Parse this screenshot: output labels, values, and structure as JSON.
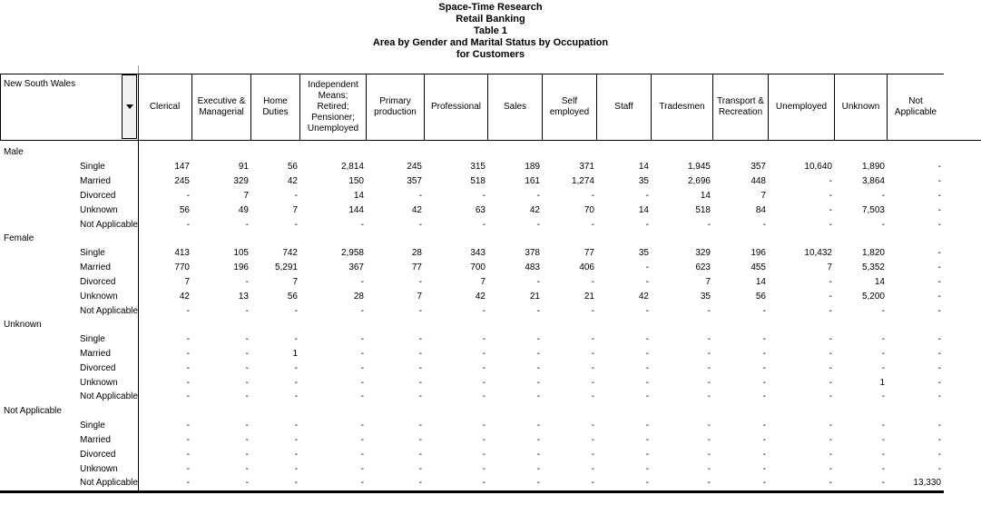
{
  "title": {
    "lines": [
      "Space-Time Research",
      "Retail Banking",
      "Table 1",
      "Area by Gender and Marital Status by Occupation",
      "for Customers"
    ]
  },
  "area_selector": {
    "label": "New South Wales",
    "icon": "chevron-down-icon"
  },
  "table": {
    "columns": [
      "Clerical",
      "Executive & Managerial",
      "Home Duties",
      "Independent Means; Retired; Pensioner; Unemployed",
      "Primary production",
      "Professional",
      "Sales",
      "Self employed",
      "Staff",
      "Tradesmen",
      "Transport & Recreation",
      "Unemployed",
      "Unknown",
      "Not Applicable"
    ],
    "groups": [
      {
        "label": "Male",
        "rows": [
          {
            "label": "Single",
            "values": [
              "147",
              "91",
              "56",
              "2,814",
              "245",
              "315",
              "189",
              "371",
              "14",
              "1,945",
              "357",
              "10,640",
              "1,890",
              "-"
            ]
          },
          {
            "label": "Married",
            "values": [
              "245",
              "329",
              "42",
              "150",
              "357",
              "518",
              "161",
              "1,274",
              "35",
              "2,696",
              "448",
              "-",
              "3,864",
              "-"
            ]
          },
          {
            "label": "Divorced",
            "values": [
              "-",
              "7",
              "-",
              "14",
              "-",
              "-",
              "-",
              "-",
              "-",
              "14",
              "7",
              "-",
              "-",
              "-"
            ]
          },
          {
            "label": "Unknown",
            "values": [
              "56",
              "49",
              "7",
              "144",
              "42",
              "63",
              "42",
              "70",
              "14",
              "518",
              "84",
              "-",
              "7,503",
              "-"
            ]
          },
          {
            "label": "Not Applicable",
            "values": [
              "-",
              "-",
              "-",
              "-",
              "-",
              "-",
              "-",
              "-",
              "-",
              "-",
              "-",
              "-",
              "-",
              "-"
            ]
          }
        ]
      },
      {
        "label": "Female",
        "rows": [
          {
            "label": "Single",
            "values": [
              "413",
              "105",
              "742",
              "2,958",
              "28",
              "343",
              "378",
              "77",
              "35",
              "329",
              "196",
              "10,432",
              "1,820",
              "-"
            ]
          },
          {
            "label": "Married",
            "values": [
              "770",
              "196",
              "5,291",
              "367",
              "77",
              "700",
              "483",
              "406",
              "-",
              "623",
              "455",
              "7",
              "5,352",
              "-"
            ]
          },
          {
            "label": "Divorced",
            "values": [
              "7",
              "-",
              "7",
              "-",
              "-",
              "7",
              "-",
              "-",
              "-",
              "7",
              "14",
              "-",
              "14",
              "-"
            ]
          },
          {
            "label": "Unknown",
            "values": [
              "42",
              "13",
              "56",
              "28",
              "7",
              "42",
              "21",
              "21",
              "42",
              "35",
              "56",
              "-",
              "5,200",
              "-"
            ]
          },
          {
            "label": "Not Applicable",
            "values": [
              "-",
              "-",
              "-",
              "-",
              "-",
              "-",
              "-",
              "-",
              "-",
              "-",
              "-",
              "-",
              "-",
              "-"
            ]
          }
        ]
      },
      {
        "label": "Unknown",
        "rows": [
          {
            "label": "Single",
            "values": [
              "-",
              "-",
              "-",
              "-",
              "-",
              "-",
              "-",
              "-",
              "-",
              "-",
              "-",
              "-",
              "-",
              "-"
            ]
          },
          {
            "label": "Married",
            "values": [
              "-",
              "-",
              "1",
              "-",
              "-",
              "-",
              "-",
              "-",
              "-",
              "-",
              "-",
              "-",
              "-",
              "-"
            ]
          },
          {
            "label": "Divorced",
            "values": [
              "-",
              "-",
              "-",
              "-",
              "-",
              "-",
              "-",
              "-",
              "-",
              "-",
              "-",
              "-",
              "-",
              "-"
            ]
          },
          {
            "label": "Unknown",
            "values": [
              "-",
              "-",
              "-",
              "-",
              "-",
              "-",
              "-",
              "-",
              "-",
              "-",
              "-",
              "-",
              "1",
              "-"
            ]
          },
          {
            "label": "Not Applicable",
            "values": [
              "-",
              "-",
              "-",
              "-",
              "-",
              "-",
              "-",
              "-",
              "-",
              "-",
              "-",
              "-",
              "-",
              "-"
            ]
          }
        ]
      },
      {
        "label": "Not Applicable",
        "rows": [
          {
            "label": "Single",
            "values": [
              "-",
              "-",
              "-",
              "-",
              "-",
              "-",
              "-",
              "-",
              "-",
              "-",
              "-",
              "-",
              "-",
              "-"
            ]
          },
          {
            "label": "Married",
            "values": [
              "-",
              "-",
              "-",
              "-",
              "-",
              "-",
              "-",
              "-",
              "-",
              "-",
              "-",
              "-",
              "-",
              "-"
            ]
          },
          {
            "label": "Divorced",
            "values": [
              "-",
              "-",
              "-",
              "-",
              "-",
              "-",
              "-",
              "-",
              "-",
              "-",
              "-",
              "-",
              "-",
              "-"
            ]
          },
          {
            "label": "Unknown",
            "values": [
              "-",
              "-",
              "-",
              "-",
              "-",
              "-",
              "-",
              "-",
              "-",
              "-",
              "-",
              "-",
              "-",
              "-"
            ]
          },
          {
            "label": "Not Applicable",
            "values": [
              "-",
              "-",
              "-",
              "-",
              "-",
              "-",
              "-",
              "-",
              "-",
              "-",
              "-",
              "-",
              "-",
              "13,330"
            ]
          }
        ]
      }
    ]
  },
  "colors": {
    "text": "#000000",
    "grid": "#000000",
    "background": "#ffffff",
    "button_face": "#f1f1f1"
  }
}
